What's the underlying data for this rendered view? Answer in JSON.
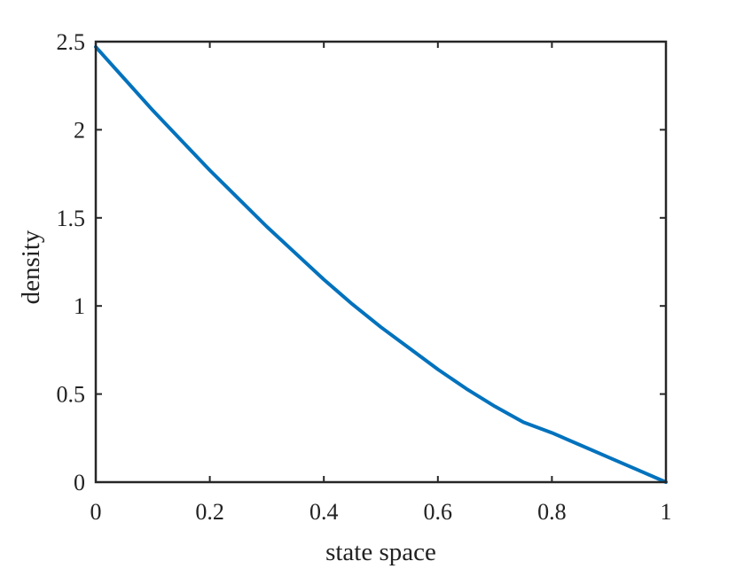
{
  "chart_data": {
    "type": "line",
    "title": "",
    "xlabel": "state space",
    "ylabel": "density",
    "xlim": [
      0,
      1
    ],
    "ylim": [
      0,
      2.5
    ],
    "grid": false,
    "x_ticks": [
      {
        "value": 0,
        "label": "0"
      },
      {
        "value": 0.2,
        "label": "0.2"
      },
      {
        "value": 0.4,
        "label": "0.4"
      },
      {
        "value": 0.6,
        "label": "0.6"
      },
      {
        "value": 0.8,
        "label": "0.8"
      },
      {
        "value": 1,
        "label": "1"
      }
    ],
    "y_ticks": [
      {
        "value": 0,
        "label": "0"
      },
      {
        "value": 0.5,
        "label": "0.5"
      },
      {
        "value": 1,
        "label": "1"
      },
      {
        "value": 1.5,
        "label": "1.5"
      },
      {
        "value": 2,
        "label": "2"
      },
      {
        "value": 2.5,
        "label": "2.5"
      }
    ],
    "series": [
      {
        "color": "#0072BD",
        "x": [
          0,
          0.05,
          0.1,
          0.15,
          0.2,
          0.25,
          0.3,
          0.35,
          0.4,
          0.45,
          0.5,
          0.55,
          0.6,
          0.65,
          0.7,
          0.75,
          0.8,
          0.85,
          0.9,
          0.95,
          1
        ],
        "y": [
          2.47,
          2.29,
          2.11,
          1.94,
          1.77,
          1.61,
          1.45,
          1.3,
          1.15,
          1.01,
          0.88,
          0.76,
          0.64,
          0.53,
          0.43,
          0.34,
          0.28,
          0.21,
          0.14,
          0.07,
          0.0
        ]
      }
    ]
  }
}
